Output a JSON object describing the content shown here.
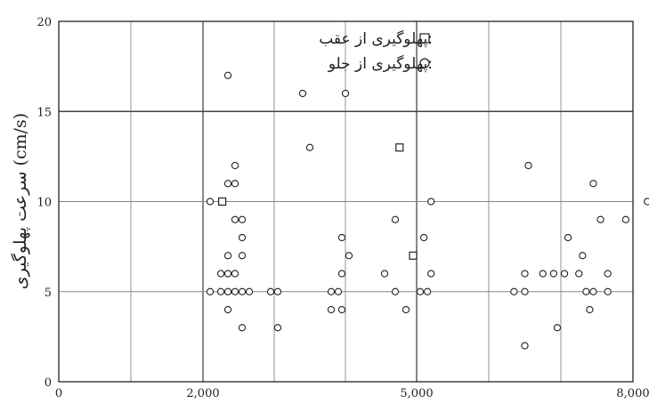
{
  "chart_data": {
    "type": "scatter",
    "title": "",
    "xlabel": "",
    "ylabel": "سرعت پهلوگیری (cm/s)",
    "xlim": [
      0,
      8000
    ],
    "ylim": [
      0,
      20
    ],
    "x_ticks": [
      0,
      2000,
      5000,
      8000
    ],
    "x_tick_labels": [
      "0",
      "2,000",
      "5,000",
      "8,000"
    ],
    "y_ticks": [
      0,
      5,
      10,
      15,
      20
    ],
    "y_tick_labels": [
      "0",
      "5",
      "10",
      "15",
      "20"
    ],
    "grid": true,
    "legend_position": "top-right",
    "series": [
      {
        "name": "پهلوگیری از عقب",
        "marker": "square",
        "points": [
          [
            2270,
            10
          ],
          [
            4760,
            13
          ],
          [
            4950,
            7
          ]
        ]
      },
      {
        "name": "پهلوگیری از جلو",
        "marker": "circle",
        "points": [
          [
            2350,
            17
          ],
          [
            3400,
            16
          ],
          [
            4000,
            16
          ],
          [
            3500,
            13
          ],
          [
            2450,
            12
          ],
          [
            2350,
            11
          ],
          [
            2450,
            11
          ],
          [
            2100,
            10
          ],
          [
            2450,
            9
          ],
          [
            2550,
            9
          ],
          [
            4700,
            9
          ],
          [
            5200,
            10
          ],
          [
            2550,
            8
          ],
          [
            3950,
            8
          ],
          [
            5100,
            8
          ],
          [
            2350,
            7
          ],
          [
            2550,
            7
          ],
          [
            4050,
            7
          ],
          [
            2250,
            6
          ],
          [
            2350,
            6
          ],
          [
            2450,
            6
          ],
          [
            3950,
            6
          ],
          [
            4550,
            6
          ],
          [
            5200,
            6
          ],
          [
            2100,
            5
          ],
          [
            2250,
            5
          ],
          [
            2350,
            5
          ],
          [
            2450,
            5
          ],
          [
            2550,
            5
          ],
          [
            2650,
            5
          ],
          [
            2950,
            5
          ],
          [
            3050,
            5
          ],
          [
            3800,
            5
          ],
          [
            3900,
            5
          ],
          [
            4700,
            5
          ],
          [
            5050,
            5
          ],
          [
            5150,
            5
          ],
          [
            2350,
            4
          ],
          [
            3800,
            4
          ],
          [
            3950,
            4
          ],
          [
            4850,
            4
          ],
          [
            2550,
            3
          ],
          [
            3050,
            3
          ],
          [
            6500,
            6
          ],
          [
            6500,
            5
          ],
          [
            6350,
            5
          ],
          [
            6500,
            2
          ],
          [
            6550,
            12
          ],
          [
            6750,
            6
          ],
          [
            6900,
            6
          ],
          [
            7050,
            6
          ],
          [
            6950,
            3
          ],
          [
            7100,
            8
          ],
          [
            7450,
            11
          ],
          [
            7550,
            9
          ],
          [
            7250,
            6
          ],
          [
            7300,
            7
          ],
          [
            7350,
            5
          ],
          [
            7450,
            5
          ],
          [
            7650,
            6
          ],
          [
            7400,
            4
          ],
          [
            7650,
            5
          ],
          [
            7900,
            9
          ],
          [
            8200,
            10
          ]
        ]
      }
    ]
  }
}
